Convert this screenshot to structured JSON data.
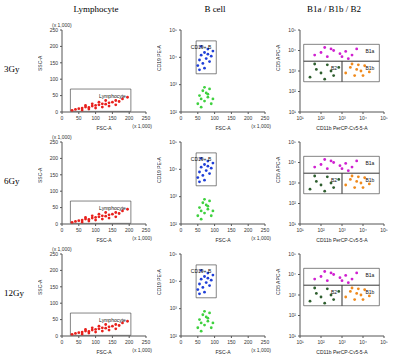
{
  "column_titles": [
    "Lymphocyte",
    "B cell",
    "B1a / B1b / B2"
  ],
  "row_labels": [
    "3Gy",
    "6Gy",
    "12Gy"
  ],
  "chart_data": [
    {
      "type": "scatter",
      "x_label": "FSC-A",
      "y_label": "SSC-A",
      "x_note": "(x 1,000)",
      "y_note": "(x 1,000)",
      "log": false,
      "xlim": [
        0,
        250
      ],
      "ylim": [
        0,
        250
      ],
      "xticks": [
        0,
        50,
        100,
        150,
        200,
        250
      ],
      "yticks": [
        0,
        50,
        100,
        150,
        200,
        250
      ],
      "gates": [
        {
          "label": "Lymphocyte",
          "xlim": [
            25,
            205
          ],
          "ylim": [
            2,
            70
          ]
        }
      ],
      "series": [
        {
          "color": "#e8201c",
          "points": [
            [
              30,
              5
            ],
            [
              40,
              8
            ],
            [
              50,
              10
            ],
            [
              60,
              12
            ],
            [
              70,
              15
            ],
            [
              80,
              14
            ],
            [
              90,
              18
            ],
            [
              100,
              20
            ],
            [
              110,
              22
            ],
            [
              120,
              25
            ],
            [
              130,
              24
            ],
            [
              140,
              28
            ],
            [
              150,
              30
            ],
            [
              160,
              35
            ],
            [
              170,
              32
            ],
            [
              180,
              40
            ],
            [
              60,
              6
            ],
            [
              80,
              9
            ],
            [
              100,
              12
            ],
            [
              120,
              15
            ],
            [
              140,
              18
            ],
            [
              160,
              22
            ],
            [
              90,
              25
            ],
            [
              110,
              30
            ],
            [
              130,
              35
            ],
            [
              195,
              45
            ],
            [
              70,
              20
            ]
          ]
        }
      ]
    },
    {
      "type": "scatter",
      "x_label": "FSC-A",
      "y_label": "CD19 PE-A",
      "x_note": "(x 1,000)",
      "log": "y",
      "xlim": [
        0,
        250
      ],
      "ylim": [
        100,
        100000
      ],
      "xticks": [
        0,
        50,
        100,
        150,
        200,
        250
      ],
      "yticks": [
        {
          "value": 100,
          "label": "10²"
        },
        {
          "value": 1000,
          "label": "10³"
        },
        {
          "value": 10000,
          "label": "10⁴"
        },
        {
          "value": 100000,
          "label": "10⁵"
        }
      ],
      "gates": [
        {
          "label": "CD19+ B",
          "xlim": [
            45,
            105
          ],
          "ylim": [
            2500,
            40000
          ]
        }
      ],
      "series": [
        {
          "color": "#1f3fd8",
          "points": [
            [
              50,
              5000
            ],
            [
              55,
              8000
            ],
            [
              60,
              12000
            ],
            [
              65,
              6000
            ],
            [
              70,
              15000
            ],
            [
              75,
              9000
            ],
            [
              80,
              20000
            ],
            [
              85,
              7000
            ],
            [
              90,
              11000
            ],
            [
              60,
              25000
            ],
            [
              70,
              4000
            ],
            [
              80,
              13000
            ],
            [
              95,
              17000
            ],
            [
              55,
              3500
            ]
          ]
        },
        {
          "color": "#3fd13f",
          "points": [
            [
              50,
              200
            ],
            [
              55,
              400
            ],
            [
              60,
              300
            ],
            [
              65,
              600
            ],
            [
              70,
              250
            ],
            [
              75,
              500
            ],
            [
              80,
              350
            ],
            [
              85,
              700
            ],
            [
              90,
              200
            ],
            [
              60,
              150
            ],
            [
              70,
              800
            ],
            [
              80,
              450
            ],
            [
              95,
              300
            ]
          ]
        }
      ]
    },
    {
      "type": "scatter",
      "x_label": "CD11b PerCP-Cy5-5-A",
      "y_label": "CD5 APC-A",
      "log": true,
      "xlim": [
        10,
        100000
      ],
      "ylim": [
        10,
        100000
      ],
      "xticks": [
        {
          "value": 10,
          "label": "10¹"
        },
        {
          "value": 100,
          "label": "10²"
        },
        {
          "value": 1000,
          "label": "10³"
        },
        {
          "value": 10000,
          "label": "10⁴"
        },
        {
          "value": 100000,
          "label": "10⁵"
        }
      ],
      "yticks": [
        {
          "value": 10,
          "label": "10¹"
        },
        {
          "value": 100,
          "label": "10²"
        },
        {
          "value": 1000,
          "label": "10³"
        },
        {
          "value": 10000,
          "label": "10⁴"
        },
        {
          "value": 100000,
          "label": "10⁵"
        }
      ],
      "gates": [
        {
          "label": "B1a",
          "xlim": [
            15,
            60000
          ],
          "ylim": [
            3000,
            20000
          ]
        },
        {
          "label": "B2",
          "xlim": [
            15,
            1000
          ],
          "ylim": [
            300,
            3000
          ]
        },
        {
          "label": "B1b",
          "xlim": [
            1000,
            60000
          ],
          "ylim": [
            300,
            3000
          ]
        }
      ],
      "series": [
        {
          "color": "#d020d0",
          "points": [
            [
              50,
              6000
            ],
            [
              100,
              8000
            ],
            [
              200,
              5000
            ],
            [
              400,
              10000
            ],
            [
              800,
              7000
            ],
            [
              1500,
              9000
            ],
            [
              3000,
              6000
            ],
            [
              5000,
              12000
            ],
            [
              300,
              12000
            ],
            [
              1000,
              5000
            ],
            [
              2000,
              4000
            ],
            [
              150,
              14000
            ]
          ]
        },
        {
          "color": "#f08a1c",
          "points": [
            [
              1500,
              800
            ],
            [
              2500,
              1500
            ],
            [
              4000,
              600
            ],
            [
              6000,
              2000
            ],
            [
              8000,
              1000
            ],
            [
              12000,
              1800
            ],
            [
              3000,
              2200
            ],
            [
              5000,
              1200
            ],
            [
              20000,
              900
            ],
            [
              10000,
              600
            ]
          ]
        },
        {
          "color": "#2e5e2e",
          "points": [
            [
              30,
              500
            ],
            [
              60,
              1200
            ],
            [
              100,
              800
            ],
            [
              200,
              2000
            ],
            [
              400,
              600
            ],
            [
              700,
              1500
            ],
            [
              150,
              400
            ],
            [
              50,
              2200
            ],
            [
              300,
              1000
            ]
          ]
        }
      ]
    }
  ]
}
